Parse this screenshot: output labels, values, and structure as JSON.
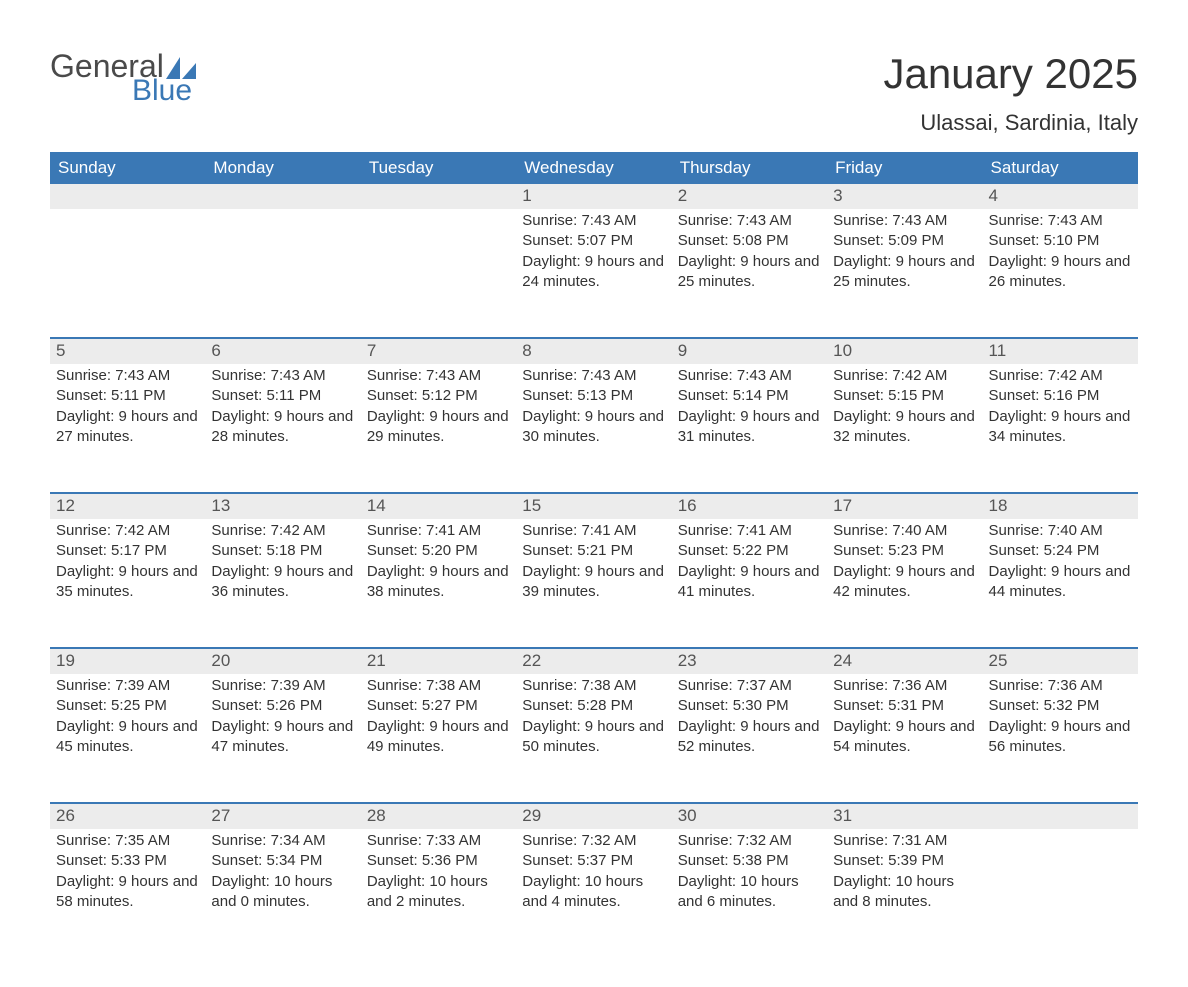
{
  "brand": {
    "word1": "General",
    "word2": "Blue",
    "logo_color": "#3a78b5"
  },
  "title": "January 2025",
  "location": "Ulassai, Sardinia, Italy",
  "accent_blue": "#3a78b5",
  "stripe_gray": "#ececec",
  "text_color": "#333333",
  "day_headers": [
    "Sunday",
    "Monday",
    "Tuesday",
    "Wednesday",
    "Thursday",
    "Friday",
    "Saturday"
  ],
  "weeks": [
    [
      {
        "day": "",
        "sunrise": "",
        "sunset": "",
        "daylight": ""
      },
      {
        "day": "",
        "sunrise": "",
        "sunset": "",
        "daylight": ""
      },
      {
        "day": "",
        "sunrise": "",
        "sunset": "",
        "daylight": ""
      },
      {
        "day": "1",
        "sunrise": "Sunrise: 7:43 AM",
        "sunset": "Sunset: 5:07 PM",
        "daylight": "Daylight: 9 hours and 24 minutes."
      },
      {
        "day": "2",
        "sunrise": "Sunrise: 7:43 AM",
        "sunset": "Sunset: 5:08 PM",
        "daylight": "Daylight: 9 hours and 25 minutes."
      },
      {
        "day": "3",
        "sunrise": "Sunrise: 7:43 AM",
        "sunset": "Sunset: 5:09 PM",
        "daylight": "Daylight: 9 hours and 25 minutes."
      },
      {
        "day": "4",
        "sunrise": "Sunrise: 7:43 AM",
        "sunset": "Sunset: 5:10 PM",
        "daylight": "Daylight: 9 hours and 26 minutes."
      }
    ],
    [
      {
        "day": "5",
        "sunrise": "Sunrise: 7:43 AM",
        "sunset": "Sunset: 5:11 PM",
        "daylight": "Daylight: 9 hours and 27 minutes."
      },
      {
        "day": "6",
        "sunrise": "Sunrise: 7:43 AM",
        "sunset": "Sunset: 5:11 PM",
        "daylight": "Daylight: 9 hours and 28 minutes."
      },
      {
        "day": "7",
        "sunrise": "Sunrise: 7:43 AM",
        "sunset": "Sunset: 5:12 PM",
        "daylight": "Daylight: 9 hours and 29 minutes."
      },
      {
        "day": "8",
        "sunrise": "Sunrise: 7:43 AM",
        "sunset": "Sunset: 5:13 PM",
        "daylight": "Daylight: 9 hours and 30 minutes."
      },
      {
        "day": "9",
        "sunrise": "Sunrise: 7:43 AM",
        "sunset": "Sunset: 5:14 PM",
        "daylight": "Daylight: 9 hours and 31 minutes."
      },
      {
        "day": "10",
        "sunrise": "Sunrise: 7:42 AM",
        "sunset": "Sunset: 5:15 PM",
        "daylight": "Daylight: 9 hours and 32 minutes."
      },
      {
        "day": "11",
        "sunrise": "Sunrise: 7:42 AM",
        "sunset": "Sunset: 5:16 PM",
        "daylight": "Daylight: 9 hours and 34 minutes."
      }
    ],
    [
      {
        "day": "12",
        "sunrise": "Sunrise: 7:42 AM",
        "sunset": "Sunset: 5:17 PM",
        "daylight": "Daylight: 9 hours and 35 minutes."
      },
      {
        "day": "13",
        "sunrise": "Sunrise: 7:42 AM",
        "sunset": "Sunset: 5:18 PM",
        "daylight": "Daylight: 9 hours and 36 minutes."
      },
      {
        "day": "14",
        "sunrise": "Sunrise: 7:41 AM",
        "sunset": "Sunset: 5:20 PM",
        "daylight": "Daylight: 9 hours and 38 minutes."
      },
      {
        "day": "15",
        "sunrise": "Sunrise: 7:41 AM",
        "sunset": "Sunset: 5:21 PM",
        "daylight": "Daylight: 9 hours and 39 minutes."
      },
      {
        "day": "16",
        "sunrise": "Sunrise: 7:41 AM",
        "sunset": "Sunset: 5:22 PM",
        "daylight": "Daylight: 9 hours and 41 minutes."
      },
      {
        "day": "17",
        "sunrise": "Sunrise: 7:40 AM",
        "sunset": "Sunset: 5:23 PM",
        "daylight": "Daylight: 9 hours and 42 minutes."
      },
      {
        "day": "18",
        "sunrise": "Sunrise: 7:40 AM",
        "sunset": "Sunset: 5:24 PM",
        "daylight": "Daylight: 9 hours and 44 minutes."
      }
    ],
    [
      {
        "day": "19",
        "sunrise": "Sunrise: 7:39 AM",
        "sunset": "Sunset: 5:25 PM",
        "daylight": "Daylight: 9 hours and 45 minutes."
      },
      {
        "day": "20",
        "sunrise": "Sunrise: 7:39 AM",
        "sunset": "Sunset: 5:26 PM",
        "daylight": "Daylight: 9 hours and 47 minutes."
      },
      {
        "day": "21",
        "sunrise": "Sunrise: 7:38 AM",
        "sunset": "Sunset: 5:27 PM",
        "daylight": "Daylight: 9 hours and 49 minutes."
      },
      {
        "day": "22",
        "sunrise": "Sunrise: 7:38 AM",
        "sunset": "Sunset: 5:28 PM",
        "daylight": "Daylight: 9 hours and 50 minutes."
      },
      {
        "day": "23",
        "sunrise": "Sunrise: 7:37 AM",
        "sunset": "Sunset: 5:30 PM",
        "daylight": "Daylight: 9 hours and 52 minutes."
      },
      {
        "day": "24",
        "sunrise": "Sunrise: 7:36 AM",
        "sunset": "Sunset: 5:31 PM",
        "daylight": "Daylight: 9 hours and 54 minutes."
      },
      {
        "day": "25",
        "sunrise": "Sunrise: 7:36 AM",
        "sunset": "Sunset: 5:32 PM",
        "daylight": "Daylight: 9 hours and 56 minutes."
      }
    ],
    [
      {
        "day": "26",
        "sunrise": "Sunrise: 7:35 AM",
        "sunset": "Sunset: 5:33 PM",
        "daylight": "Daylight: 9 hours and 58 minutes."
      },
      {
        "day": "27",
        "sunrise": "Sunrise: 7:34 AM",
        "sunset": "Sunset: 5:34 PM",
        "daylight": "Daylight: 10 hours and 0 minutes."
      },
      {
        "day": "28",
        "sunrise": "Sunrise: 7:33 AM",
        "sunset": "Sunset: 5:36 PM",
        "daylight": "Daylight: 10 hours and 2 minutes."
      },
      {
        "day": "29",
        "sunrise": "Sunrise: 7:32 AM",
        "sunset": "Sunset: 5:37 PM",
        "daylight": "Daylight: 10 hours and 4 minutes."
      },
      {
        "day": "30",
        "sunrise": "Sunrise: 7:32 AM",
        "sunset": "Sunset: 5:38 PM",
        "daylight": "Daylight: 10 hours and 6 minutes."
      },
      {
        "day": "31",
        "sunrise": "Sunrise: 7:31 AM",
        "sunset": "Sunset: 5:39 PM",
        "daylight": "Daylight: 10 hours and 8 minutes."
      },
      {
        "day": "",
        "sunrise": "",
        "sunset": "",
        "daylight": ""
      }
    ]
  ]
}
